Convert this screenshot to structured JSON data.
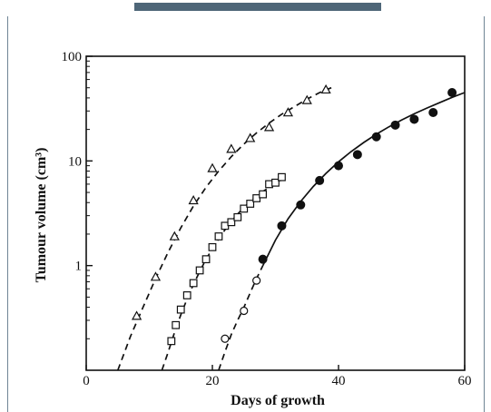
{
  "chart_data": {
    "type": "scatter",
    "title": "",
    "xlabel": "Days of growth",
    "ylabel": "Tumour volume (cm³)",
    "xlim": [
      0,
      60
    ],
    "ylim": [
      0.1,
      100
    ],
    "y_scale": "log",
    "x_ticks": [
      0,
      20,
      40,
      60
    ],
    "x_tick_labels": [
      "0",
      "20",
      "40",
      "60"
    ],
    "y_ticks": [
      1,
      10,
      100
    ],
    "y_tick_labels": [
      "1",
      "10",
      "100"
    ],
    "grid": false,
    "series": [
      {
        "marker": "triangle-open",
        "x": [
          8,
          11,
          14,
          17,
          20,
          23,
          26,
          29,
          32,
          35,
          38
        ],
        "y": [
          0.33,
          0.78,
          1.9,
          4.2,
          8.5,
          13,
          16.5,
          21,
          29,
          38,
          48
        ]
      },
      {
        "marker": "square-open",
        "x": [
          13.5,
          14.2,
          15,
          16,
          17,
          18,
          19,
          20,
          21,
          22,
          23,
          24,
          25,
          26,
          27,
          28,
          29,
          30,
          31
        ],
        "y": [
          0.19,
          0.27,
          0.38,
          0.52,
          0.68,
          0.9,
          1.15,
          1.5,
          1.9,
          2.4,
          2.6,
          2.9,
          3.5,
          3.9,
          4.4,
          4.8,
          6.0,
          6.2,
          7.0
        ]
      },
      {
        "marker": "circle-open",
        "x": [
          22,
          25,
          27
        ],
        "y": [
          0.2,
          0.37,
          0.72
        ]
      },
      {
        "marker": "circle-filled",
        "x": [
          28,
          31,
          34,
          37,
          40,
          43,
          46,
          49,
          52,
          55,
          58
        ],
        "y": [
          1.15,
          2.4,
          3.8,
          6.5,
          9,
          11.5,
          17,
          22,
          25,
          29,
          45
        ]
      }
    ],
    "curves": [
      {
        "style": "dashed",
        "x": [
          5,
          7,
          9,
          11,
          13,
          15,
          17,
          19,
          21,
          23,
          25,
          27,
          29,
          31,
          33,
          35,
          37,
          39.5
        ],
        "y": [
          0.1,
          0.21,
          0.4,
          0.75,
          1.35,
          2.3,
          3.7,
          5.6,
          8,
          11,
          14.5,
          18.5,
          23,
          28,
          33,
          39,
          45,
          52
        ]
      },
      {
        "style": "dashed",
        "x": [
          12,
          13,
          14,
          15,
          16,
          17,
          18,
          19,
          20,
          21,
          22,
          23,
          24,
          25,
          26,
          27,
          28,
          29,
          30,
          31
        ],
        "y": [
          0.1,
          0.15,
          0.23,
          0.34,
          0.48,
          0.66,
          0.88,
          1.15,
          1.45,
          1.8,
          2.2,
          2.65,
          3.1,
          3.6,
          4.1,
          4.6,
          5.1,
          5.6,
          6.1,
          6.6
        ]
      },
      {
        "style": "dashed",
        "x": [
          21,
          22,
          23,
          24,
          25,
          26,
          27,
          28
        ],
        "y": [
          0.1,
          0.15,
          0.22,
          0.3,
          0.4,
          0.55,
          0.75,
          1.0
        ]
      },
      {
        "style": "solid",
        "x": [
          28,
          30,
          32,
          34,
          36,
          38,
          40,
          42,
          44,
          46,
          48,
          50,
          52,
          54,
          56,
          58,
          60
        ],
        "y": [
          1.0,
          1.75,
          2.8,
          4.1,
          5.7,
          7.6,
          9.8,
          12.3,
          15,
          18,
          21.2,
          24.6,
          28.2,
          32,
          36,
          40.5,
          45
        ]
      }
    ]
  }
}
